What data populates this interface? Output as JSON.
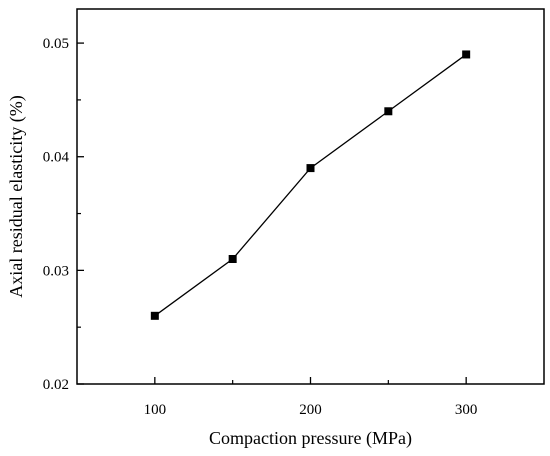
{
  "chart_data": {
    "type": "line",
    "title": "",
    "xlabel": "Compaction pressure (MPa)",
    "ylabel": "Axial residual elasticity (%)",
    "xlim": [
      50,
      350
    ],
    "ylim": [
      0.02,
      0.053
    ],
    "xticks": [
      100,
      200,
      300
    ],
    "xtick_labels": [
      "100",
      "200",
      "300"
    ],
    "xticks_minor": [
      150,
      250
    ],
    "yticks": [
      0.02,
      0.03,
      0.04,
      0.05
    ],
    "ytick_labels": [
      "0.02",
      "0.03",
      "0.04",
      "0.05"
    ],
    "yticks_minor": [
      0.025,
      0.035,
      0.045
    ],
    "grid": false,
    "legend": "none",
    "marker": "square",
    "line_color": "#000000",
    "series": [
      {
        "x": [
          100,
          150,
          200,
          250,
          300
        ],
        "y": [
          0.026,
          0.031,
          0.039,
          0.044,
          0.049
        ]
      }
    ]
  }
}
